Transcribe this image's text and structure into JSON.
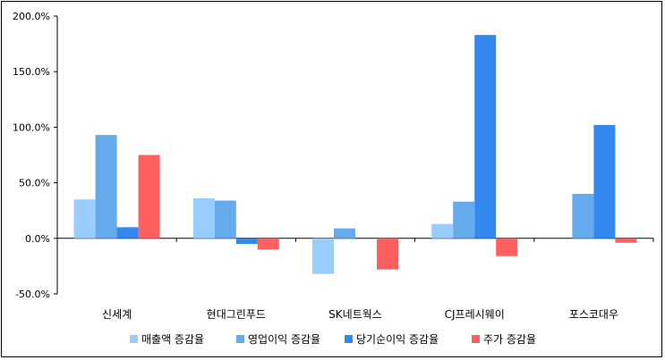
{
  "chart_data": {
    "type": "bar",
    "title": "",
    "xlabel": "",
    "ylabel": "",
    "ylim": [
      -50,
      200
    ],
    "yticks": [
      -50,
      0,
      50,
      100,
      150,
      200
    ],
    "ytick_labels": [
      "-50.0%",
      "0.0%",
      "50.0%",
      "100.0%",
      "150.0%",
      "200.0%"
    ],
    "categories": [
      "신세계",
      "현대그린푸드",
      "SK네트웍스",
      "CJ프레시웨이",
      "포스코대우"
    ],
    "series": [
      {
        "name": "매출액 증감율",
        "color": "#99ccff",
        "values": [
          35,
          36,
          -32,
          13,
          0
        ]
      },
      {
        "name": "영업이익 증감율",
        "color": "#66aaee",
        "values": [
          93,
          34,
          9,
          33,
          40
        ]
      },
      {
        "name": "당기순이익 증감율",
        "color": "#3388ee",
        "values": [
          10,
          -5,
          0,
          183,
          102
        ]
      },
      {
        "name": "주가 증감율",
        "color": "#ff5f5f",
        "values": [
          75,
          -10,
          -28,
          -16,
          -4
        ]
      }
    ],
    "grid": false,
    "legend_position": "bottom"
  }
}
